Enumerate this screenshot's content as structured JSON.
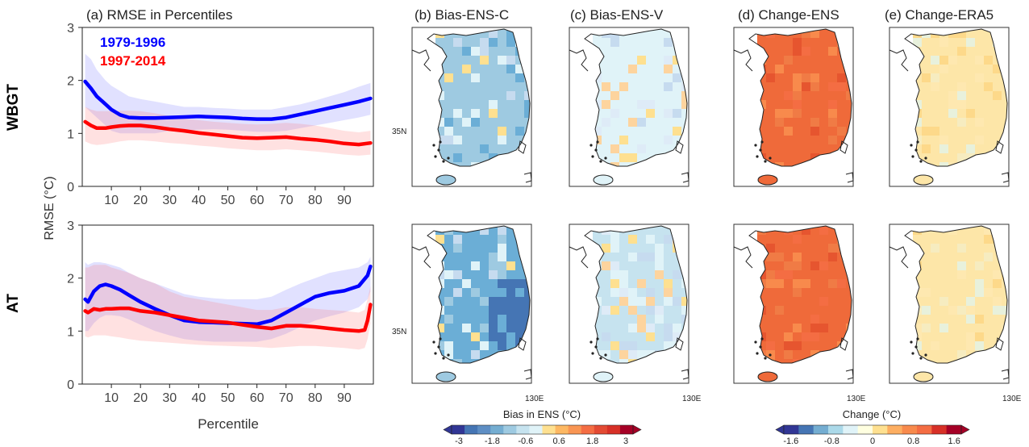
{
  "row_labels": [
    "WBGT",
    "AT"
  ],
  "y_axis_label": "RMSE (°C)",
  "x_axis_label": "Percentile",
  "panel_titles": {
    "a": "(a) RMSE in Percentiles",
    "b": "(b) Bias-ENS-C",
    "c": "(c) Bias-ENS-V",
    "d": "(d) Change-ENS",
    "e": "(e) Change-ERA5"
  },
  "map_labels": {
    "lat": "35N",
    "lon": "130E"
  },
  "colorbars": {
    "bias": {
      "title": "Bias in ENS (°C)",
      "tick_labels": [
        "-3",
        "-1.8",
        "-0.6",
        "0.6",
        "1.8",
        "3"
      ],
      "colors": [
        "#313695",
        "#4575b4",
        "#5e8ec4",
        "#74add1",
        "#9ecae1",
        "#c6e3ef",
        "#e0f3f8",
        "#fee090",
        "#fdb863",
        "#f99553",
        "#f46d43",
        "#e34a33",
        "#d73027",
        "#a50026"
      ]
    },
    "change": {
      "title": "Change (°C)",
      "tick_labels": [
        "-1.6",
        "-0.8",
        "0",
        "0.8",
        "1.6"
      ],
      "colors": [
        "#313695",
        "#4575b4",
        "#74add1",
        "#abd9e9",
        "#e0f3f8",
        "#ffffe0",
        "#fee090",
        "#fdae61",
        "#f88a4c",
        "#f46d43",
        "#d73027",
        "#a50026"
      ]
    }
  },
  "chart_data": [
    {
      "type": "line",
      "panel": "a-WBGT",
      "xlim": [
        0,
        100
      ],
      "ylim": [
        0,
        3
      ],
      "xticks": [
        10,
        20,
        30,
        40,
        50,
        60,
        70,
        80,
        90
      ],
      "yticks": [
        0,
        1,
        2,
        3
      ],
      "series": [
        {
          "name": "1979-1996",
          "color": "#0000ff",
          "x": [
            1,
            3,
            5,
            8,
            10,
            13,
            16,
            20,
            25,
            30,
            35,
            40,
            45,
            50,
            55,
            60,
            65,
            70,
            75,
            80,
            85,
            90,
            95,
            99
          ],
          "y": [
            1.98,
            1.85,
            1.7,
            1.55,
            1.45,
            1.35,
            1.3,
            1.29,
            1.29,
            1.3,
            1.31,
            1.32,
            1.31,
            1.3,
            1.28,
            1.27,
            1.27,
            1.3,
            1.36,
            1.42,
            1.48,
            1.54,
            1.6,
            1.66
          ],
          "upper": [
            2.5,
            2.4,
            2.2,
            2.0,
            1.9,
            1.8,
            1.7,
            1.65,
            1.6,
            1.55,
            1.5,
            1.5,
            1.48,
            1.47,
            1.45,
            1.45,
            1.45,
            1.5,
            1.55,
            1.62,
            1.7,
            1.78,
            1.88,
            1.95
          ],
          "lower": [
            1.5,
            1.4,
            1.3,
            1.15,
            1.05,
            1.0,
            1.0,
            1.0,
            1.0,
            1.05,
            1.05,
            1.07,
            1.08,
            1.07,
            1.05,
            1.03,
            1.03,
            1.05,
            1.1,
            1.15,
            1.2,
            1.25,
            1.3,
            1.35
          ]
        },
        {
          "name": "1997-2014",
          "color": "#ff0000",
          "x": [
            1,
            3,
            5,
            8,
            10,
            13,
            16,
            20,
            25,
            30,
            35,
            40,
            45,
            50,
            55,
            60,
            65,
            70,
            75,
            80,
            85,
            90,
            95,
            99
          ],
          "y": [
            1.22,
            1.15,
            1.1,
            1.1,
            1.12,
            1.14,
            1.15,
            1.15,
            1.12,
            1.08,
            1.05,
            1.01,
            0.98,
            0.95,
            0.92,
            0.91,
            0.92,
            0.93,
            0.9,
            0.88,
            0.85,
            0.81,
            0.79,
            0.82
          ],
          "upper": [
            1.5,
            1.45,
            1.42,
            1.42,
            1.42,
            1.43,
            1.43,
            1.42,
            1.38,
            1.33,
            1.28,
            1.25,
            1.22,
            1.2,
            1.18,
            1.17,
            1.18,
            1.2,
            1.18,
            1.15,
            1.1,
            1.05,
            1.02,
            1.05
          ],
          "lower": [
            0.85,
            0.8,
            0.78,
            0.8,
            0.82,
            0.85,
            0.87,
            0.87,
            0.85,
            0.82,
            0.8,
            0.77,
            0.75,
            0.72,
            0.7,
            0.68,
            0.68,
            0.7,
            0.68,
            0.66,
            0.63,
            0.6,
            0.58,
            0.6
          ]
        }
      ]
    },
    {
      "type": "line",
      "panel": "a-AT",
      "xlim": [
        0,
        100
      ],
      "ylim": [
        0,
        3
      ],
      "xticks": [
        10,
        20,
        30,
        40,
        50,
        60,
        70,
        80,
        90
      ],
      "yticks": [
        0,
        1,
        2,
        3
      ],
      "series": [
        {
          "name": "1979-1996",
          "color": "#0000ff",
          "x": [
            1,
            2,
            4,
            6,
            8,
            10,
            13,
            16,
            20,
            25,
            30,
            35,
            40,
            45,
            50,
            55,
            60,
            65,
            70,
            75,
            80,
            85,
            90,
            95,
            98,
            99
          ],
          "y": [
            1.6,
            1.55,
            1.75,
            1.85,
            1.88,
            1.85,
            1.78,
            1.68,
            1.55,
            1.42,
            1.3,
            1.2,
            1.17,
            1.16,
            1.15,
            1.14,
            1.13,
            1.2,
            1.35,
            1.5,
            1.65,
            1.72,
            1.76,
            1.85,
            2.05,
            2.22
          ],
          "upper": [
            2.3,
            2.25,
            2.3,
            2.3,
            2.28,
            2.25,
            2.2,
            2.1,
            2.0,
            1.9,
            1.8,
            1.7,
            1.65,
            1.62,
            1.6,
            1.6,
            1.6,
            1.65,
            1.78,
            1.9,
            2.0,
            2.1,
            2.15,
            2.2,
            2.3,
            2.4
          ],
          "lower": [
            1.0,
            1.0,
            1.15,
            1.25,
            1.3,
            1.3,
            1.28,
            1.22,
            1.12,
            1.0,
            0.92,
            0.85,
            0.82,
            0.8,
            0.8,
            0.8,
            0.8,
            0.85,
            0.95,
            1.08,
            1.2,
            1.28,
            1.35,
            1.45,
            1.6,
            1.75
          ]
        },
        {
          "name": "1997-2014",
          "color": "#ff0000",
          "x": [
            1,
            2,
            4,
            6,
            8,
            10,
            13,
            16,
            20,
            25,
            30,
            35,
            40,
            45,
            50,
            55,
            60,
            65,
            70,
            75,
            80,
            85,
            90,
            95,
            97,
            98,
            99
          ],
          "y": [
            1.38,
            1.35,
            1.42,
            1.4,
            1.42,
            1.42,
            1.43,
            1.43,
            1.38,
            1.35,
            1.3,
            1.25,
            1.2,
            1.18,
            1.16,
            1.12,
            1.08,
            1.05,
            1.1,
            1.1,
            1.08,
            1.05,
            1.02,
            1.0,
            1.02,
            1.2,
            1.5
          ],
          "upper": [
            2.2,
            2.2,
            2.25,
            2.25,
            2.25,
            2.2,
            2.15,
            2.1,
            2.0,
            1.9,
            1.75,
            1.65,
            1.6,
            1.55,
            1.5,
            1.45,
            1.4,
            1.4,
            1.45,
            1.45,
            1.42,
            1.4,
            1.38,
            1.35,
            1.4,
            1.6,
            1.85
          ],
          "lower": [
            0.9,
            0.88,
            0.92,
            0.92,
            0.92,
            0.9,
            0.88,
            0.85,
            0.82,
            0.8,
            0.78,
            0.76,
            0.74,
            0.73,
            0.72,
            0.71,
            0.7,
            0.68,
            0.7,
            0.72,
            0.72,
            0.7,
            0.68,
            0.65,
            0.68,
            0.85,
            1.15
          ]
        }
      ]
    },
    {
      "type": "heatmap",
      "panel": "maps",
      "description_colors": {
        "b-WBGT": "#9ecae1",
        "c-WBGT": "#e0f3f8",
        "d-WBGT": "#ef6a3a",
        "e-WBGT": "#fde6a8",
        "b-AT": "#6baed6",
        "c-AT": "#c6e3ef",
        "d-AT": "#ef6a3a",
        "e-AT": "#fde6a8"
      }
    }
  ]
}
